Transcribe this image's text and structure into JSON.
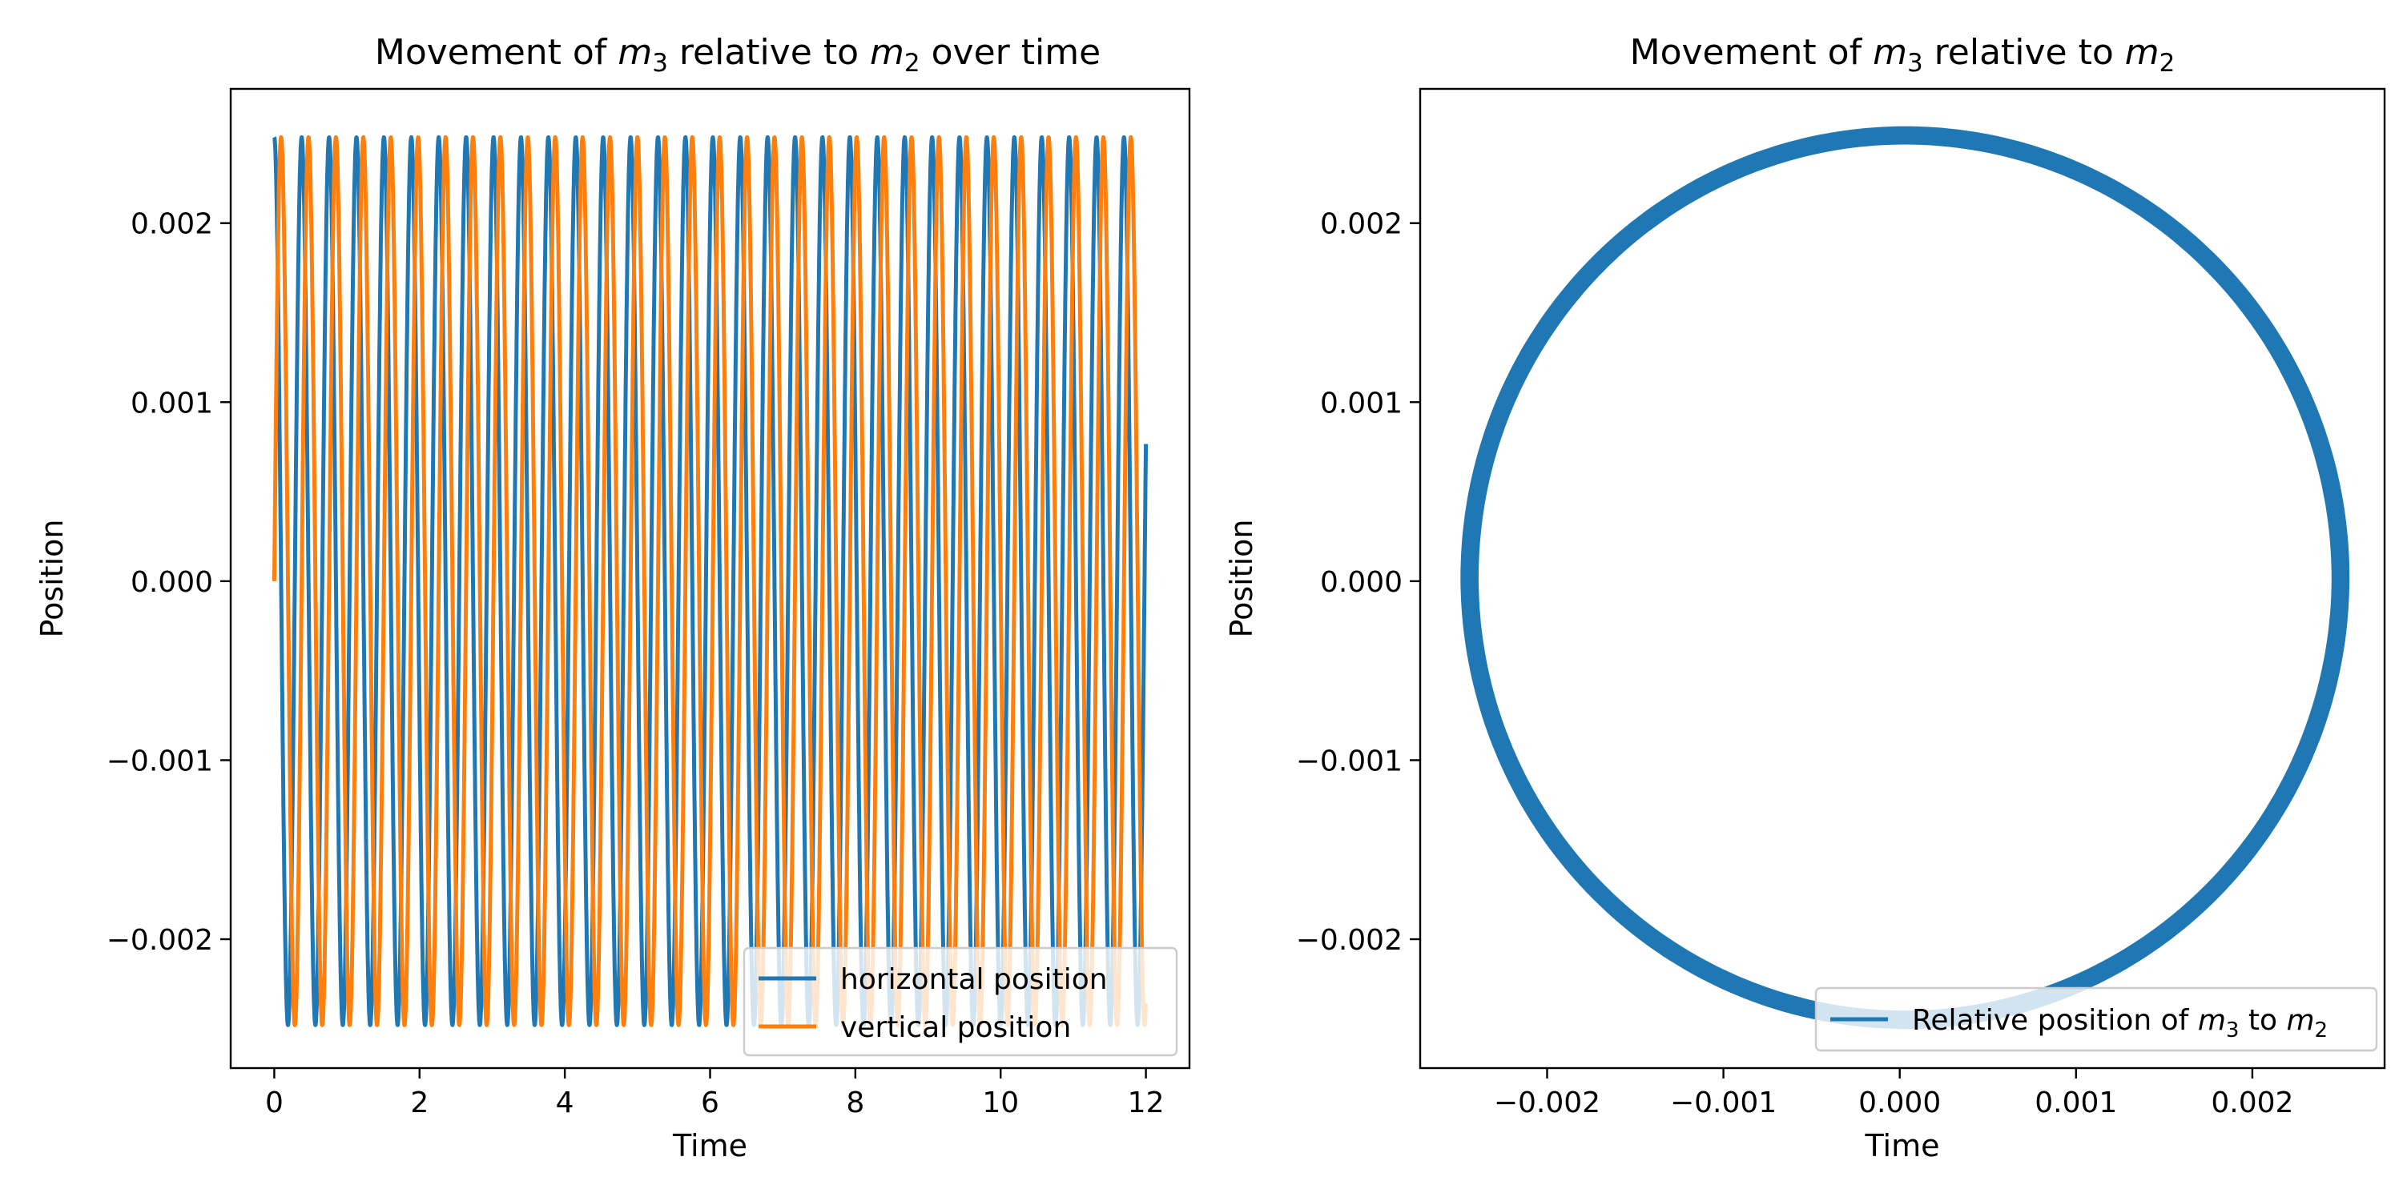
{
  "chart_data": [
    {
      "type": "line",
      "title": "Movement of m3 relative to m2 over time",
      "title_parts": {
        "pre": "Movement of ",
        "a": "m",
        "a_sub": "3",
        "mid": " relative to ",
        "b": "m",
        "b_sub": "2",
        "post": " over time"
      },
      "xlabel": "Time",
      "ylabel": "Position",
      "xlim": [
        -0.6,
        12.6
      ],
      "ylim": [
        -0.00272,
        0.00275
      ],
      "xticks": [
        0,
        2,
        4,
        6,
        8,
        10,
        12
      ],
      "xtick_labels": [
        "0",
        "2",
        "4",
        "6",
        "8",
        "10",
        "12"
      ],
      "yticks": [
        -0.002,
        -0.001,
        0.0,
        0.001,
        0.002
      ],
      "ytick_labels": [
        "−0.002",
        "−0.001",
        "0.000",
        "0.001",
        "0.002"
      ],
      "legend_position": "lower-right",
      "grid": false,
      "series": [
        {
          "name": "horizontal position",
          "color": "#1f77b4",
          "function": "cos",
          "amplitude": 0.00248,
          "frequency": 2.65,
          "t_start": 0,
          "t_end": 12
        },
        {
          "name": "vertical position",
          "color": "#ff7f0e",
          "function": "sin",
          "amplitude": 0.00248,
          "frequency": 2.65,
          "t_start": 0,
          "t_end": 12
        }
      ]
    },
    {
      "type": "line",
      "title": "Movement of m3 relative to m2",
      "title_parts": {
        "pre": "Movement of ",
        "a": "m",
        "a_sub": "3",
        "mid": " relative to ",
        "b": "m",
        "b_sub": "2",
        "post": ""
      },
      "xlabel": "Time",
      "ylabel": "Position",
      "xlim": [
        -0.00272,
        0.00275
      ],
      "ylim": [
        -0.00272,
        0.00275
      ],
      "xticks": [
        -0.002,
        -0.001,
        0.0,
        0.001,
        0.002
      ],
      "xtick_labels": [
        "−0.002",
        "−0.001",
        "0.000",
        "0.001",
        "0.002"
      ],
      "yticks": [
        -0.002,
        -0.001,
        0.0,
        0.001,
        0.002
      ],
      "ytick_labels": [
        "−0.002",
        "−0.001",
        "0.000",
        "0.001",
        "0.002"
      ],
      "legend_position": "lower-right",
      "grid": false,
      "series": [
        {
          "name": "Relative position of m3 to m2",
          "name_parts": {
            "pre": "Relative position of ",
            "a": "m",
            "a_sub": "3",
            "mid": " to ",
            "b": "m",
            "b_sub": "2"
          },
          "color": "#1f77b4",
          "shape": "circle",
          "radius_min": 0.00243,
          "radius_max": 0.00251,
          "center": [
            3e-05,
            2e-05
          ]
        }
      ]
    }
  ]
}
